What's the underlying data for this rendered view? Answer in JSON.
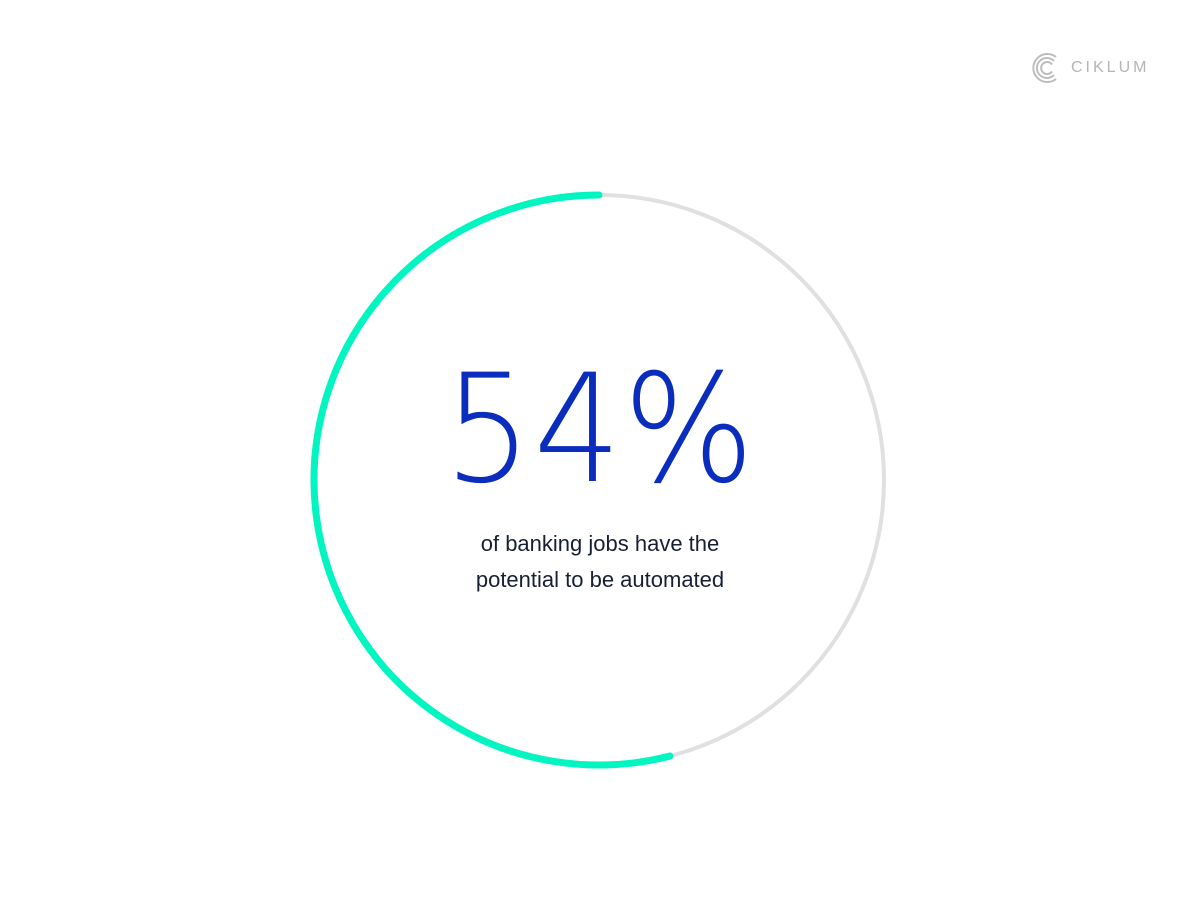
{
  "logo": {
    "text": "CIKLUM",
    "icon": "ciklum-c-logo-icon"
  },
  "chart_data": {
    "type": "pie",
    "variant": "progress-ring",
    "value_percent": 54,
    "label": "54%",
    "caption_lines": [
      "of banking jobs have the",
      "potential to be automated"
    ],
    "colors": {
      "progress": "#00f5c0",
      "track": "#e0e0e0",
      "value_text": "#0a2dbd",
      "caption": "#172033"
    }
  }
}
